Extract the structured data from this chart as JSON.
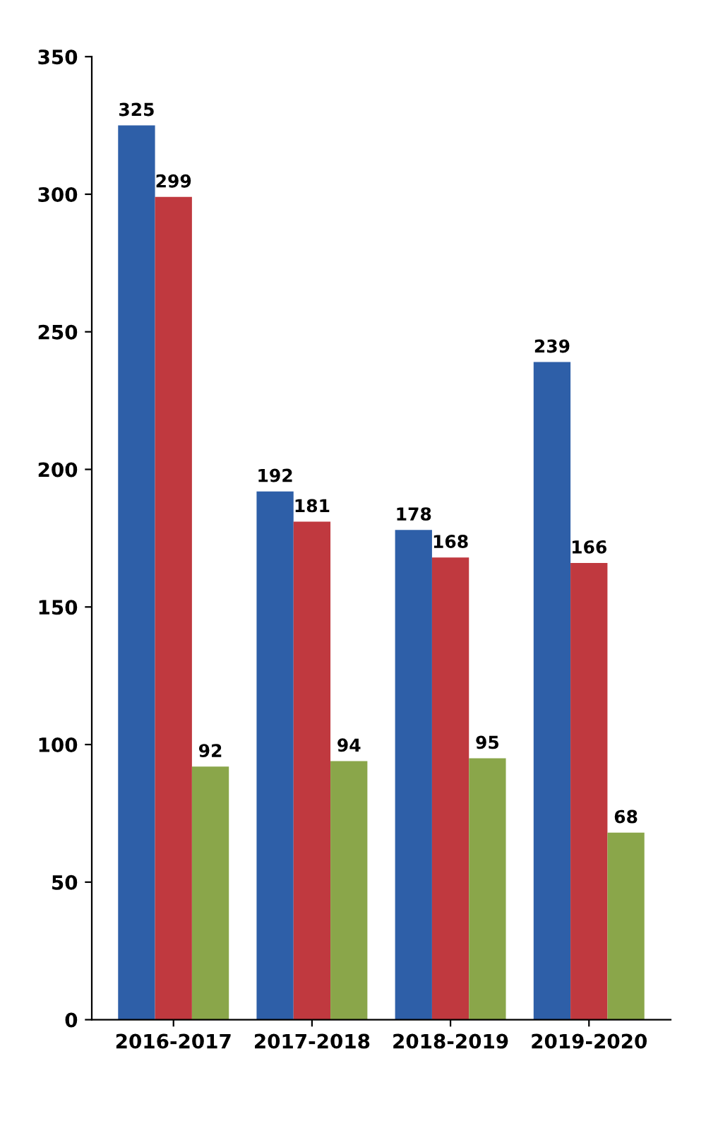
{
  "chart_data": {
    "type": "bar",
    "categories": [
      "2016-2017",
      "2017-2018",
      "2018-2019",
      "2019-2020"
    ],
    "series": [
      {
        "color": "#2e5fa8",
        "values": [
          325,
          192,
          178,
          239
        ]
      },
      {
        "color": "#c0393f",
        "values": [
          299,
          181,
          168,
          166
        ]
      },
      {
        "color": "#8aa64a",
        "values": [
          92,
          94,
          95,
          68
        ]
      }
    ],
    "ylim": [
      0,
      350
    ],
    "yticks": [
      0,
      50,
      100,
      150,
      200,
      250,
      300,
      350
    ],
    "data_labels": true,
    "grid": false,
    "legend": false
  }
}
